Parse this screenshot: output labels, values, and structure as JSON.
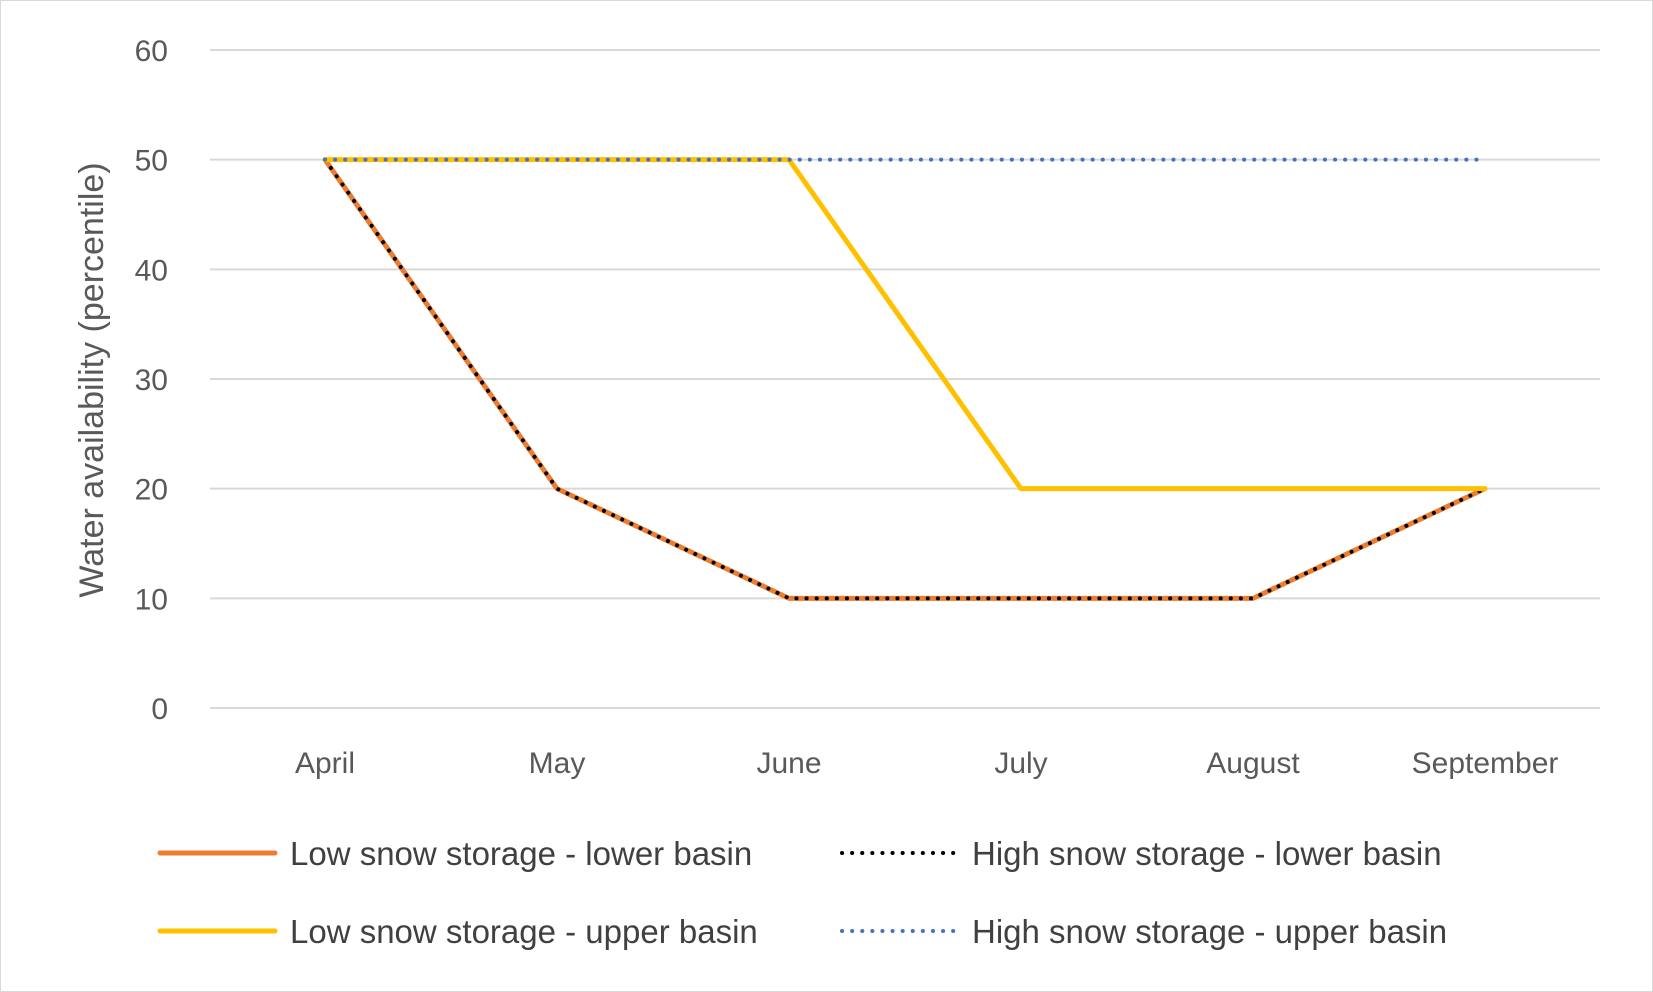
{
  "chart_data": {
    "type": "line",
    "title": "",
    "xlabel": "",
    "ylabel": "Water availability (percentile)",
    "categories": [
      "April",
      "May",
      "June",
      "July",
      "August",
      "September"
    ],
    "ylim": [
      0,
      60
    ],
    "yticks": [
      0,
      10,
      20,
      30,
      40,
      50,
      60
    ],
    "grid": true,
    "legend_position": "bottom",
    "series": [
      {
        "name": "Low snow storage - lower basin",
        "values": [
          50,
          20,
          10,
          10,
          10,
          20
        ],
        "color": "#ED7D31",
        "style": "solid"
      },
      {
        "name": "High snow storage - lower basin",
        "values": [
          50,
          20,
          10,
          10,
          10,
          20
        ],
        "color": "#000000",
        "style": "dotted"
      },
      {
        "name": "Low snow storage - upper basin",
        "values": [
          50,
          50,
          50,
          20,
          20,
          20
        ],
        "color": "#FFC000",
        "style": "solid"
      },
      {
        "name": "High snow storage - upper basin",
        "values": [
          50,
          50,
          50,
          50,
          50,
          50
        ],
        "color": "#4472C4",
        "style": "dotted"
      }
    ]
  }
}
